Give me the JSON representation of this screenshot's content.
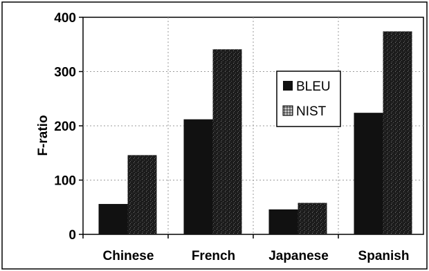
{
  "chart_data": {
    "type": "bar",
    "title": "",
    "xlabel": "",
    "ylabel": "F-ratio",
    "ylim": [
      0,
      400
    ],
    "yticks": [
      0,
      100,
      200,
      300,
      400
    ],
    "grid": true,
    "legend_position": "top-right",
    "categories": [
      "Chinese",
      "French",
      "Japanese",
      "Spanish"
    ],
    "series": [
      {
        "name": "BLEU",
        "values": [
          56,
          212,
          46,
          224
        ],
        "color": "#111111"
      },
      {
        "name": "NIST",
        "values": [
          146,
          341,
          58,
          374
        ],
        "color": "#1e1e1e"
      }
    ]
  }
}
